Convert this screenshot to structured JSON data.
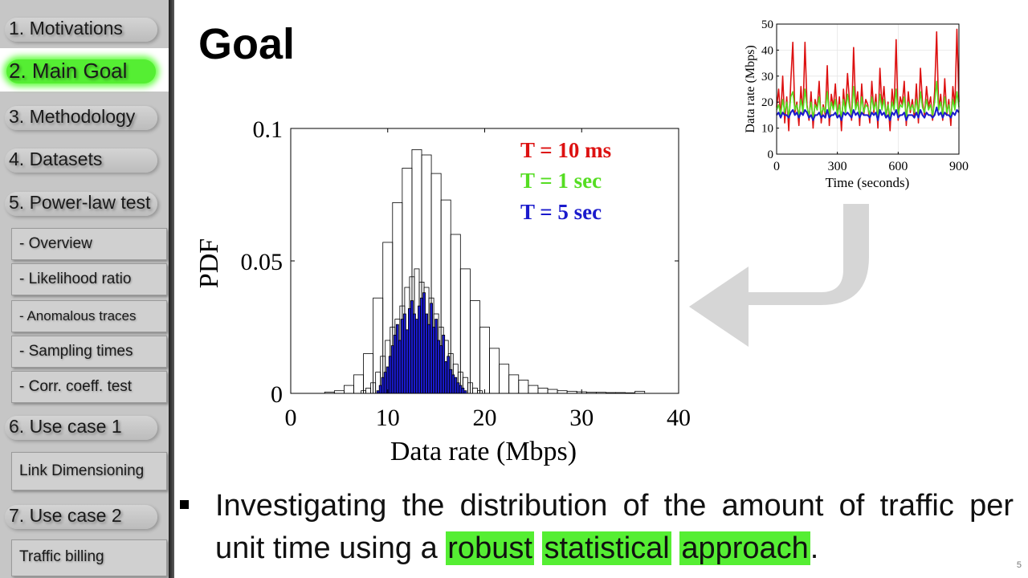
{
  "sidebar": {
    "sections": [
      {
        "label": "1. Motivations"
      },
      {
        "label": "2. Main Goal"
      },
      {
        "label": "3. Methodology"
      },
      {
        "label": "4. Datasets"
      },
      {
        "label": "5. Power-law test"
      },
      {
        "label": "6. Use case 1"
      },
      {
        "label": "7. Use case 2"
      }
    ],
    "subitems": [
      {
        "label": "- Overview"
      },
      {
        "label": "- Likelihood ratio"
      },
      {
        "label": "- Anomalous traces"
      },
      {
        "label": "- Sampling times"
      },
      {
        "label": "- Corr. coeff. test"
      },
      {
        "label": "Link Dimensioning"
      },
      {
        "label": "Traffic billing"
      }
    ]
  },
  "slide": {
    "title": "Goal",
    "bullet_parts": [
      "Investigating the distribution of the amount of traffic per unit time using a",
      "robust",
      "statistical",
      "approach",
      "."
    ],
    "number": "5"
  },
  "colors": {
    "red": "#dd1111",
    "green": "#55dd22",
    "blue": "#1a1acc",
    "highlight": "#55ee33"
  },
  "chart_data": [
    {
      "type": "bar",
      "xlabel": "Data rate (Mbps)",
      "ylabel": "PDF",
      "xlim": [
        0,
        40
      ],
      "ylim": [
        0,
        0.1
      ],
      "xticks": [
        "0",
        "10",
        "20",
        "30",
        "40"
      ],
      "yticks": [
        "0",
        "0.05",
        "0.1"
      ],
      "legend": [
        "T = 10 ms",
        "T = 1 sec",
        "T = 5 sec"
      ],
      "series": [
        {
          "name": "T = 10 ms",
          "bin_width": 1,
          "x": [
            4,
            5,
            6,
            7,
            8,
            9,
            10,
            11,
            12,
            13,
            14,
            15,
            16,
            17,
            18,
            19,
            20,
            21,
            22,
            23,
            24,
            25,
            26,
            27,
            28,
            29,
            30,
            31,
            32,
            33,
            34,
            35,
            36
          ],
          "values": [
            0.0005,
            0.001,
            0.003,
            0.007,
            0.015,
            0.036,
            0.057,
            0.072,
            0.085,
            0.092,
            0.09,
            0.083,
            0.073,
            0.06,
            0.047,
            0.035,
            0.025,
            0.017,
            0.011,
            0.007,
            0.005,
            0.003,
            0.002,
            0.0015,
            0.001,
            0.0008,
            0.0006,
            0.0004,
            0.0004,
            0.0003,
            0.0003,
            0.0002,
            0.0008
          ]
        },
        {
          "name": "T = 1 sec",
          "bin_width": 0.5,
          "x": [
            7.5,
            8,
            8.5,
            9,
            9.5,
            10,
            10.5,
            11,
            11.5,
            12,
            12.5,
            13,
            13.5,
            14,
            14.5,
            15,
            15.5,
            16,
            16.5,
            17,
            17.5,
            18,
            18.5,
            19,
            19.5
          ],
          "values": [
            0.001,
            0.002,
            0.004,
            0.008,
            0.014,
            0.02,
            0.025,
            0.028,
            0.033,
            0.04,
            0.044,
            0.047,
            0.042,
            0.04,
            0.036,
            0.03,
            0.025,
            0.02,
            0.015,
            0.011,
            0.008,
            0.006,
            0.004,
            0.002,
            0.001
          ]
        },
        {
          "name": "T = 5 sec",
          "bin_width": 0.25,
          "x": [
            9,
            9.25,
            9.5,
            9.75,
            10,
            10.25,
            10.5,
            10.75,
            11,
            11.25,
            11.5,
            11.75,
            12,
            12.25,
            12.5,
            12.75,
            13,
            13.25,
            13.5,
            13.75,
            14,
            14.25,
            14.5,
            14.75,
            15,
            15.25,
            15.5,
            15.75,
            16,
            16.25,
            16.5,
            16.75,
            17,
            17.25,
            17.5,
            17.75,
            18
          ],
          "values": [
            0.001,
            0.003,
            0.006,
            0.008,
            0.01,
            0.014,
            0.018,
            0.022,
            0.026,
            0.02,
            0.028,
            0.03,
            0.024,
            0.032,
            0.035,
            0.03,
            0.028,
            0.033,
            0.036,
            0.038,
            0.03,
            0.026,
            0.034,
            0.025,
            0.028,
            0.02,
            0.018,
            0.022,
            0.012,
            0.014,
            0.009,
            0.007,
            0.006,
            0.004,
            0.003,
            0.002,
            0.001
          ]
        }
      ]
    },
    {
      "type": "line",
      "xlabel": "Time (seconds)",
      "ylabel": "Data rate (Mbps)",
      "xlim": [
        0,
        900
      ],
      "ylim": [
        0,
        50
      ],
      "xticks": [
        "0",
        "300",
        "600",
        "900"
      ],
      "yticks": [
        "0",
        "10",
        "20",
        "30",
        "40",
        "50"
      ],
      "series": [
        {
          "name": "T = 10 ms",
          "x_step": 10,
          "values": [
            18,
            25,
            14,
            30,
            12,
            22,
            9,
            28,
            43,
            16,
            20,
            11,
            26,
            15,
            43,
            19,
            13,
            24,
            10,
            21,
            17,
            28,
            12,
            19,
            15,
            34,
            11,
            23,
            18,
            27,
            14,
            22,
            9,
            25,
            16,
            31,
            20,
            13,
            41,
            18,
            24,
            11,
            27,
            15,
            21,
            19,
            12,
            28,
            16,
            23,
            10,
            33,
            18,
            26,
            14,
            20,
            9,
            25,
            17,
            44,
            13,
            22,
            19,
            28,
            11,
            24,
            16,
            21,
            14,
            27,
            12,
            33,
            20,
            15,
            26,
            18,
            22,
            13,
            24,
            47,
            17,
            23,
            13,
            29,
            15,
            21,
            11,
            26,
            18,
            48,
            20
          ]
        },
        {
          "name": "T = 1 sec",
          "x_step": 10,
          "values": [
            17,
            19,
            15,
            21,
            16,
            20,
            14,
            22,
            24,
            17,
            19,
            15,
            21,
            16,
            25,
            18,
            15,
            20,
            14,
            19,
            17,
            22,
            15,
            18,
            16,
            24,
            15,
            20,
            17,
            21,
            15,
            19,
            14,
            21,
            16,
            23,
            18,
            15,
            26,
            17,
            20,
            14,
            22,
            16,
            19,
            18,
            15,
            22,
            17,
            20,
            14,
            23,
            17,
            21,
            15,
            19,
            14,
            20,
            17,
            25,
            15,
            19,
            18,
            22,
            14,
            20,
            17,
            19,
            16,
            21,
            15,
            24,
            18,
            16,
            21,
            17,
            19,
            15,
            20,
            28,
            17,
            20,
            15,
            22,
            16,
            19,
            14,
            21,
            17,
            24,
            18
          ]
        },
        {
          "name": "T = 5 sec",
          "x_step": 10,
          "values": [
            15,
            16,
            14,
            16,
            15,
            15,
            14,
            16,
            17,
            15,
            16,
            14,
            16,
            15,
            17,
            16,
            14,
            15,
            13,
            15,
            15,
            16,
            14,
            15,
            14,
            17,
            14,
            15,
            15,
            16,
            14,
            15,
            13,
            16,
            15,
            16,
            15,
            14,
            17,
            15,
            16,
            14,
            16,
            15,
            15,
            15,
            14,
            16,
            15,
            16,
            13,
            17,
            15,
            16,
            14,
            15,
            13,
            16,
            15,
            17,
            14,
            15,
            15,
            16,
            13,
            15,
            15,
            15,
            14,
            16,
            14,
            17,
            15,
            14,
            16,
            15,
            15,
            14,
            15,
            18,
            15,
            16,
            14,
            16,
            15,
            15,
            14,
            16,
            15,
            17,
            16
          ]
        }
      ]
    }
  ]
}
